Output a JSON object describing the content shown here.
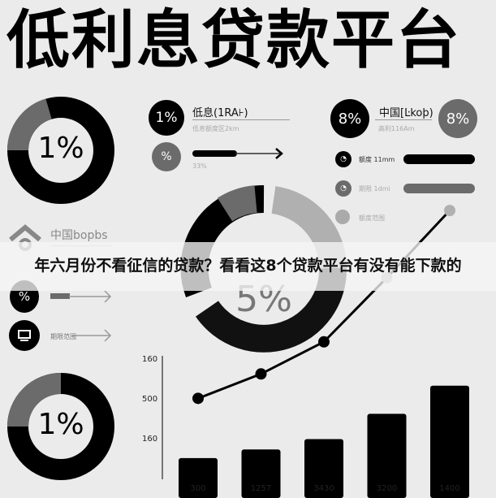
{
  "title": "低利息贷款平台",
  "banner": "年六月份不看征信的贷款？看看这8个贷款平台有没有能下款的",
  "donut_top_left": {
    "label": "1%"
  },
  "donut_center": {
    "label": "5%"
  },
  "donut_bottom_left": {
    "label": "1%"
  },
  "rate_block": {
    "badge": "1%",
    "label": "低息(1RA⊦)",
    "sub": "低息额度区2km",
    "badge2": "%",
    "progress_label": "33%"
  },
  "china_block": {
    "badge": "8%",
    "label": "中国[Ŀkoþ)",
    "sub": "高利116Am",
    "badge2": "8%"
  },
  "right_rows": [
    {
      "label": "额度 11mm"
    },
    {
      "label": "期限 1dmi"
    },
    {
      "label": "额度范围"
    }
  ],
  "left_block": {
    "label": "中国bорbs",
    "badge": "%",
    "row2_label": "期限范围"
  },
  "chart_data": {
    "type": "bar",
    "categories": [
      "300",
      "1257",
      "3430",
      "3200",
      "1400"
    ],
    "bar_levels": [
      0.37,
      0.52,
      0.7,
      1.14,
      1.63
    ],
    "line_levels": [
      0.53,
      0.69,
      0.9,
      1.32,
      1.76
    ],
    "yticks": [
      "160",
      "500",
      "160"
    ]
  },
  "colors": {
    "black": "#000000",
    "gray": "#6b6b6b",
    "light_gray": "#b0b0b0",
    "background": "#ebebeb"
  }
}
